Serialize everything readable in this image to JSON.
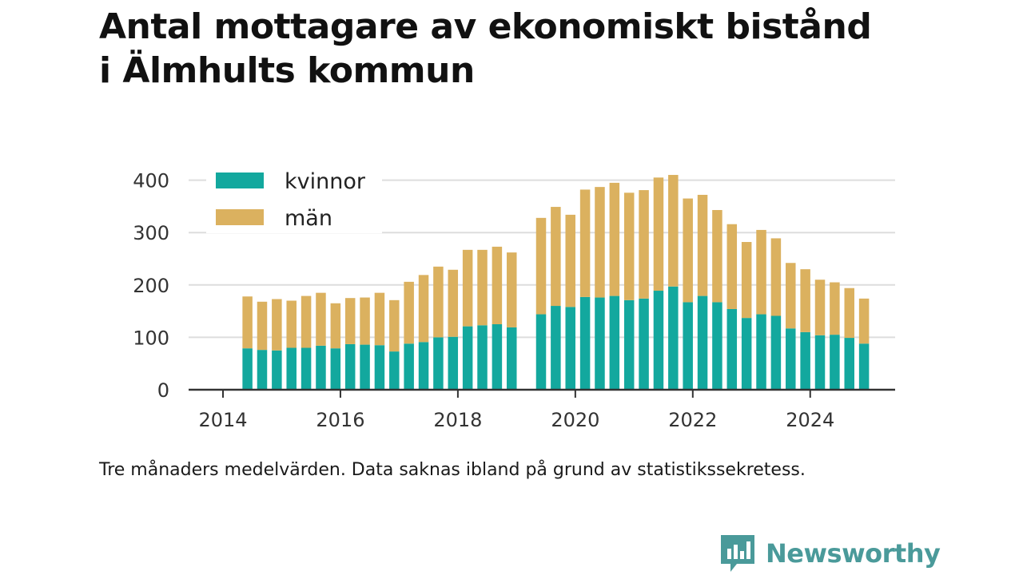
{
  "title_lines": [
    "Antal mottagare av ekonomiskt bistånd",
    "i Älmhults kommun"
  ],
  "caption": "Tre månaders medelvärden. Data saknas ibland på grund av statistikssekretess.",
  "brand": {
    "name": "Newsworthy",
    "icon": "newsworthy-logo-icon",
    "color": "#4a9a9a"
  },
  "chart_data": {
    "type": "bar",
    "stacked": true,
    "ylim": [
      0,
      410
    ],
    "yticks": [
      0,
      100,
      200,
      300,
      400
    ],
    "xticks": [
      "2014",
      "2016",
      "2018",
      "2020",
      "2022",
      "2024"
    ],
    "xlim": [
      "2013-10",
      "2025-10"
    ],
    "grid": true,
    "legend_position": "top-left",
    "series": [
      {
        "name": "kvinnor",
        "color": "#13a89e",
        "values": [
          79,
          76,
          75,
          80,
          80,
          84,
          79,
          87,
          86,
          85,
          73,
          88,
          91,
          100,
          101,
          121,
          123,
          125,
          119,
          144,
          160,
          158,
          177,
          176,
          179,
          171,
          174,
          189,
          197,
          167,
          179,
          167,
          154,
          137,
          144,
          141,
          117,
          110,
          104,
          105,
          99,
          88
        ]
      },
      {
        "name": "män",
        "color": "#dbb15f",
        "values": [
          99,
          92,
          98,
          90,
          99,
          101,
          86,
          88,
          90,
          100,
          98,
          118,
          128,
          135,
          128,
          146,
          144,
          148,
          143,
          184,
          189,
          176,
          205,
          211,
          216,
          205,
          207,
          216,
          213,
          198,
          193,
          176,
          162,
          145,
          161,
          148,
          125,
          120,
          106,
          100,
          95,
          86
        ]
      }
    ],
    "x": [
      "2014-06",
      "2014-09",
      "2014-12",
      "2015-03",
      "2015-06",
      "2015-09",
      "2015-12",
      "2016-03",
      "2016-06",
      "2016-09",
      "2016-12",
      "2017-03",
      "2017-06",
      "2017-09",
      "2017-12",
      "2018-03",
      "2018-06",
      "2018-09",
      "2018-12",
      "2019-06",
      "2019-09",
      "2019-12",
      "2020-03",
      "2020-06",
      "2020-09",
      "2020-12",
      "2021-03",
      "2021-06",
      "2021-09",
      "2021-12",
      "2022-03",
      "2022-06",
      "2022-09",
      "2022-12",
      "2023-03",
      "2023-06",
      "2023-09",
      "2023-12",
      "2024-03",
      "2024-06",
      "2024-09",
      "2024-12"
    ]
  }
}
